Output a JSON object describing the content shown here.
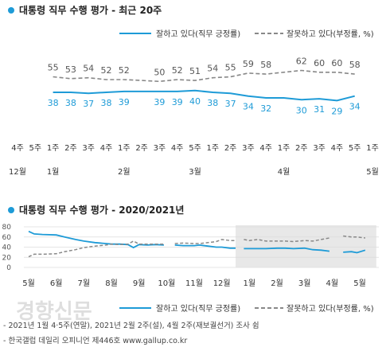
{
  "legend": {
    "approve": "잘하고 있다(직무 긍정률)",
    "disapprove": "잘못하고 있다(부정률, %)"
  },
  "colors": {
    "approve": "#1e9bd7",
    "disapprove": "#888888",
    "highlight_band": "#e8e8e8"
  },
  "chart_data": [
    {
      "type": "line",
      "title": "대통령 직무 수행 평가 - 최근 20주",
      "categories": [
        "4주",
        "5주",
        "1주",
        "2주",
        "3주",
        "4주",
        "1주",
        "2주",
        "3주",
        "4주",
        "5주",
        "1주",
        "2주",
        "3주",
        "4주",
        "1주",
        "2주",
        "3주",
        "4주",
        "5주",
        "1주"
      ],
      "month_labels": [
        {
          "index": 0,
          "label": "12월"
        },
        {
          "index": 2,
          "label": "1월"
        },
        {
          "index": 6,
          "label": "2월"
        },
        {
          "index": 10,
          "label": "3월"
        },
        {
          "index": 15,
          "label": "4월"
        },
        {
          "index": 20,
          "label": "5월"
        }
      ],
      "series": [
        {
          "name": "잘하고 있다(직무 긍정률)",
          "style": "solid",
          "values": [
            null,
            null,
            38,
            38,
            37,
            38,
            39,
            null,
            39,
            39,
            40,
            38,
            37,
            34,
            32,
            null,
            30,
            31,
            29,
            34,
            null
          ],
          "labels": [
            null,
            null,
            "38",
            "38",
            "37",
            "38",
            "39",
            null,
            "39",
            "39",
            "40",
            "38",
            "37",
            "34",
            "32",
            null,
            "30",
            "31",
            "29",
            "34",
            null
          ],
          "line": [
            null,
            null,
            38,
            38,
            37,
            38,
            39,
            39,
            39,
            39,
            40,
            38,
            37,
            34,
            32,
            32,
            30,
            31,
            29,
            34,
            null
          ]
        },
        {
          "name": "잘못하고 있다(부정률, %)",
          "style": "dashed",
          "values": [
            null,
            null,
            55,
            53,
            54,
            52,
            52,
            null,
            50,
            52,
            51,
            54,
            55,
            59,
            58,
            null,
            62,
            60,
            60,
            58,
            null
          ],
          "labels": [
            null,
            null,
            "55",
            "53",
            "54",
            "52",
            "52",
            null,
            "50",
            "52",
            "51",
            "54",
            "55",
            "59",
            "58",
            null,
            "62",
            "60",
            "60",
            "58",
            null
          ],
          "line": [
            null,
            null,
            55,
            53,
            54,
            52,
            52,
            51,
            50,
            52,
            51,
            54,
            55,
            59,
            58,
            60,
            62,
            60,
            60,
            58,
            null
          ]
        }
      ]
    },
    {
      "type": "line",
      "title": "대통령 직무 수행 평가 - 2020/2021년",
      "x_labels": [
        "5월",
        "6월",
        "7월",
        "8월",
        "9월",
        "10월",
        "11월",
        "12월",
        "1월",
        "2월",
        "3월",
        "4월",
        "5월"
      ],
      "y_ticks": [
        0,
        20,
        40,
        60,
        80
      ],
      "ylim": [
        0,
        80
      ],
      "shaded_range": [
        7.5,
        12.6
      ],
      "series": [
        {
          "name": "잘하고 있다(직무 긍정률)",
          "style": "solid",
          "points": [
            [
              0,
              71
            ],
            [
              0.2,
              66
            ],
            [
              0.5,
              65
            ],
            [
              1,
              64
            ],
            [
              1.3,
              60
            ],
            [
              1.7,
              55
            ],
            [
              2,
              52
            ],
            [
              2.4,
              49
            ],
            [
              2.8,
              47
            ],
            [
              3,
              46
            ],
            [
              3.3,
              46
            ],
            [
              3.6,
              45
            ],
            [
              3.8,
              39
            ],
            [
              4,
              45
            ],
            [
              4.3,
              44
            ],
            [
              4.6,
              45
            ],
            [
              4.9,
              44
            ],
            null,
            [
              5.3,
              44
            ],
            [
              5.6,
              43
            ],
            [
              6,
              43
            ],
            [
              6.2,
              44
            ],
            [
              6.5,
              42
            ],
            [
              6.8,
              40
            ],
            [
              7,
              40
            ],
            [
              7.3,
              38
            ],
            [
              7.5,
              38
            ],
            null,
            [
              7.8,
              37
            ],
            [
              8,
              37
            ],
            [
              8.3,
              37
            ],
            [
              8.6,
              37
            ],
            [
              9,
              38
            ],
            [
              9.3,
              38
            ],
            [
              9.6,
              37
            ],
            [
              10,
              38
            ],
            [
              10.3,
              35
            ],
            [
              10.6,
              34
            ],
            [
              10.9,
              32
            ],
            null,
            [
              11.4,
              30
            ],
            [
              11.7,
              31
            ],
            [
              11.9,
              29
            ],
            [
              12.2,
              34
            ]
          ]
        },
        {
          "name": "잘못하고 있다(부정률, %)",
          "style": "dashed",
          "points": [
            [
              0,
              21
            ],
            [
              0.2,
              26
            ],
            [
              0.5,
              26
            ],
            [
              1,
              27
            ],
            [
              1.3,
              31
            ],
            [
              1.7,
              35
            ],
            [
              2,
              39
            ],
            [
              2.4,
              42
            ],
            [
              2.8,
              44
            ],
            [
              3,
              46
            ],
            [
              3.3,
              45
            ],
            [
              3.6,
              46
            ],
            [
              3.8,
              52
            ],
            [
              4,
              46
            ],
            [
              4.3,
              46
            ],
            [
              4.6,
              46
            ],
            [
              4.9,
              46
            ],
            null,
            [
              5.3,
              47
            ],
            [
              5.6,
              48
            ],
            [
              6,
              47
            ],
            [
              6.2,
              47
            ],
            [
              6.5,
              49
            ],
            [
              6.8,
              51
            ],
            [
              7,
              55
            ],
            [
              7.3,
              53
            ],
            [
              7.5,
              53
            ],
            null,
            [
              7.8,
              55
            ],
            [
              8,
              53
            ],
            [
              8.3,
              55
            ],
            [
              8.6,
              52
            ],
            [
              9,
              52
            ],
            [
              9.3,
              52
            ],
            [
              9.6,
              51
            ],
            [
              10,
              53
            ],
            [
              10.3,
              52
            ],
            [
              10.6,
              55
            ],
            [
              10.9,
              58
            ],
            null,
            [
              11.4,
              62
            ],
            [
              11.7,
              60
            ],
            [
              11.9,
              60
            ],
            [
              12.2,
              58
            ]
          ]
        }
      ]
    }
  ],
  "watermark": "경향신문",
  "footnotes": [
    "- 2021년 1월 4·5주(연말), 2021년 2월 2주(설), 4월 2주(재보궐선거) 조사 쉼",
    "- 한국갤럽 데일리 오피니언 제446호 www.gallup.co.kr"
  ]
}
